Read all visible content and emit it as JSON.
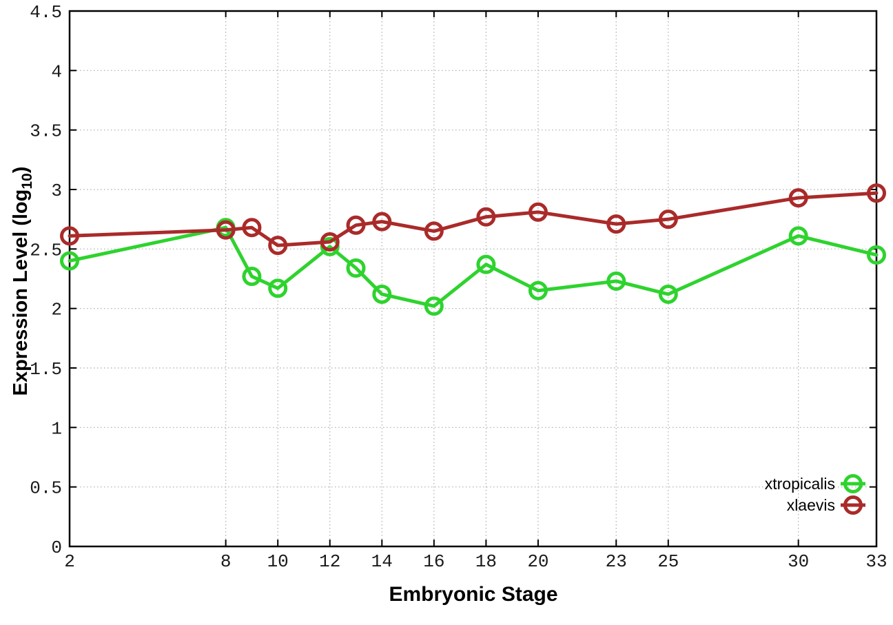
{
  "chart_data": {
    "type": "line",
    "title": "",
    "xlabel": "Embryonic Stage",
    "ylabel": "Expression Level (log10)",
    "ylabel_parts": {
      "base": "Expression Level (log",
      "sub": "10",
      "suffix": ")"
    },
    "x": [
      2,
      8,
      9,
      10,
      12,
      13,
      14,
      16,
      18,
      20,
      23,
      25,
      30,
      33
    ],
    "xticks": [
      2,
      8,
      10,
      12,
      14,
      16,
      18,
      20,
      23,
      25,
      30,
      33
    ],
    "xtick_labels": [
      "2",
      "8",
      "10",
      "12",
      "14",
      "16",
      "18",
      "20",
      "23",
      "25",
      "30",
      "33"
    ],
    "yticks": [
      0,
      0.5,
      1,
      1.5,
      2,
      2.5,
      3,
      3.5,
      4,
      4.5
    ],
    "ytick_labels": [
      "0",
      "0.5",
      "1",
      "1.5",
      "2",
      "2.5",
      "3",
      "3.5",
      "4",
      "4.5"
    ],
    "xlim": [
      2,
      33
    ],
    "ylim": [
      0,
      4.5
    ],
    "grid": true,
    "legend_position": "inside-bottom-right",
    "marker": "open-circle",
    "series": [
      {
        "name": "xtropicalis",
        "color": "#2ed32e",
        "values": [
          2.4,
          2.68,
          2.27,
          2.17,
          2.52,
          2.34,
          2.12,
          2.02,
          2.37,
          2.15,
          2.23,
          2.12,
          2.61,
          2.45
        ]
      },
      {
        "name": "xlaevis",
        "color": "#aa2a2a",
        "values": [
          2.61,
          2.66,
          2.68,
          2.53,
          2.56,
          2.7,
          2.73,
          2.65,
          2.77,
          2.81,
          2.71,
          2.75,
          2.93,
          2.97
        ]
      }
    ]
  }
}
